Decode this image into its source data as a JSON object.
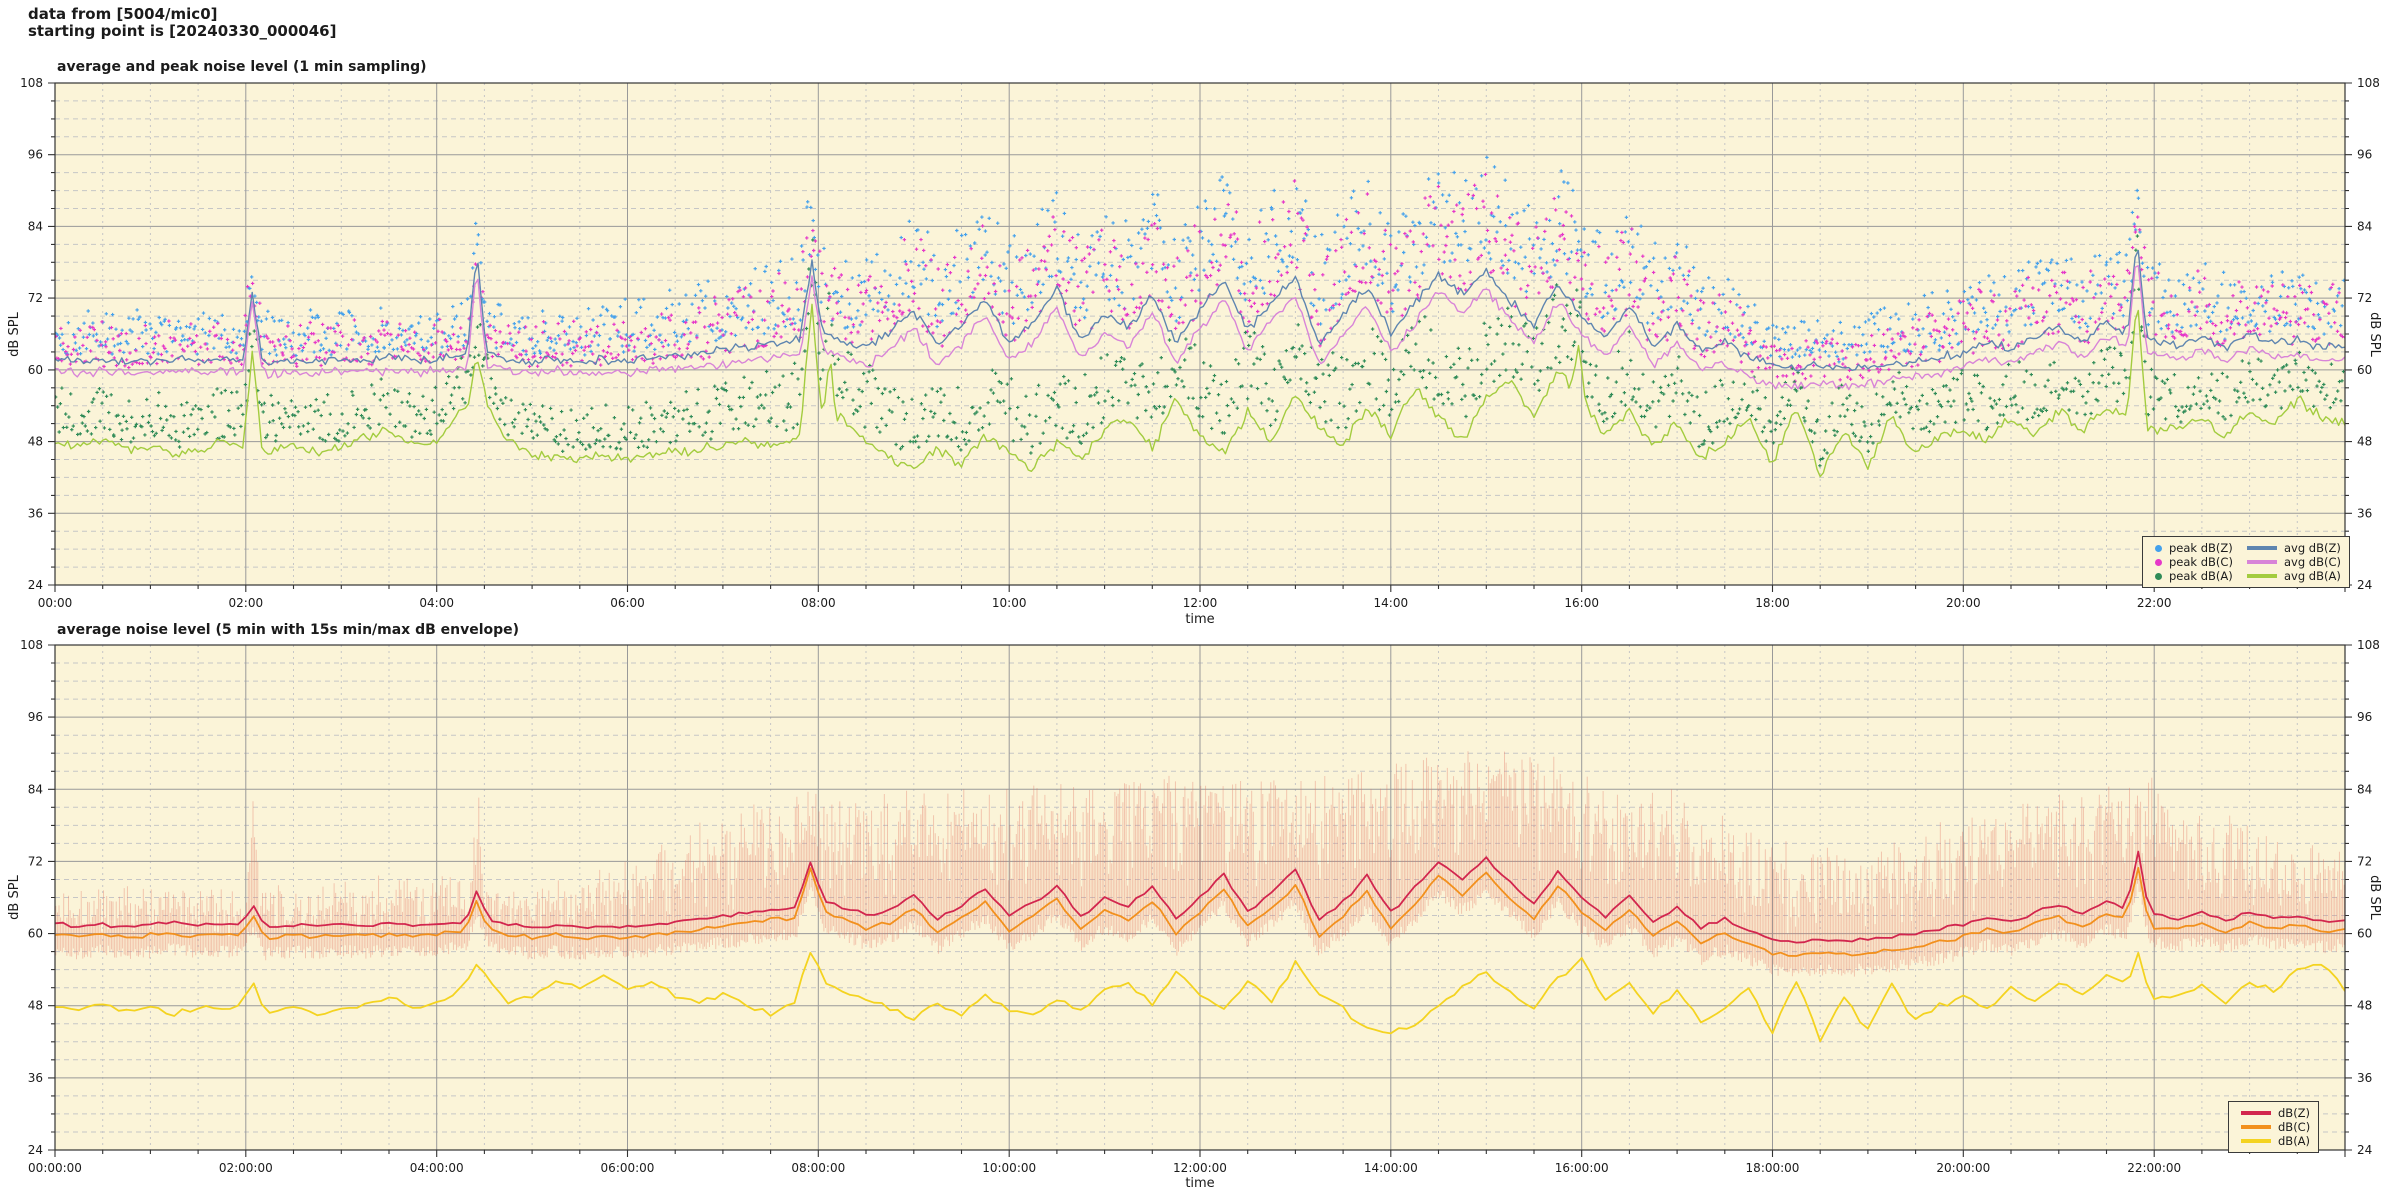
{
  "header": {
    "line1": "data from [5004/mic0]",
    "line2": "starting point is [20240330_000046]"
  },
  "chart_data": [
    {
      "type": "line+scatter",
      "title": "average and peak noise level (1 min sampling)",
      "xlabel": "time",
      "ylabel_left": "dB SPL",
      "ylabel_right": "dB SPL",
      "x_tick_labels": [
        "00:00",
        "02:00",
        "04:00",
        "06:00",
        "08:00",
        "10:00",
        "12:00",
        "14:00",
        "16:00",
        "18:00",
        "20:00",
        "22:00"
      ],
      "x_tick_hours": [
        0,
        2,
        4,
        6,
        8,
        10,
        12,
        14,
        16,
        18,
        20,
        22
      ],
      "x_range_hours": [
        0,
        24
      ],
      "x_minor_step_h": 0.5,
      "y_tick_values": [
        24,
        36,
        48,
        60,
        72,
        84,
        96,
        108
      ],
      "y_minor_step": 3,
      "ylim": [
        24,
        108
      ],
      "grid": true,
      "legend_position": "bottom-right-inside",
      "anchor_step_min": 15,
      "series": [
        {
          "key": "avg_dbz",
          "label": "avg dB(Z)",
          "color": "#5e85b0",
          "style": "line",
          "event_key": "z",
          "jitter": 1.0,
          "values": [
            62,
            61.4,
            61.8,
            61.3,
            61.6,
            62.2,
            61.5,
            61.8,
            61.6,
            61.4,
            61.7,
            61.3,
            61.9,
            61.5,
            62,
            61.6,
            61.8,
            62.5,
            63,
            61.8,
            61.5,
            61.9,
            61.4,
            61.7,
            61.5,
            62,
            62.3,
            62.8,
            63.5,
            64,
            64.5,
            65,
            66,
            65,
            63.5,
            66.5,
            70,
            64,
            67.5,
            72,
            64.5,
            68,
            73.5,
            65,
            69.5,
            67,
            72.5,
            64.5,
            70,
            75,
            66.5,
            71.5,
            75.5,
            64,
            69,
            74,
            66,
            71,
            76,
            72.5,
            76.5,
            71.5,
            67.5,
            74.5,
            69,
            65.5,
            70.5,
            64,
            67.5,
            63,
            64.5,
            62,
            60.5,
            60.2,
            60.6,
            60.3,
            60.6,
            61,
            61.4,
            62,
            63,
            64.5,
            63.5,
            65.5,
            67,
            64.5,
            68,
            66,
            65,
            64,
            65.5,
            63.5,
            66,
            64.5,
            65,
            63.8,
            64.2
          ]
        },
        {
          "key": "avg_dbc",
          "label": "avg dB(C)",
          "color": "#d884d8",
          "style": "line",
          "event_key": "c",
          "jitter": 1.0,
          "values": [
            60,
            59.4,
            59.8,
            59.3,
            59.6,
            60.2,
            59.5,
            59.8,
            59.6,
            59.4,
            59.7,
            59.3,
            59.9,
            59.5,
            60,
            59.6,
            59.8,
            60.3,
            60.8,
            59.8,
            59.5,
            59.9,
            59.4,
            59.7,
            59.5,
            59.9,
            60.1,
            60.4,
            61,
            61.5,
            62,
            62.5,
            63.5,
            62.3,
            60.8,
            63.3,
            67,
            60.8,
            64.3,
            69,
            61.3,
            64.8,
            70.5,
            61.8,
            66.3,
            63.8,
            69.5,
            61.3,
            66.8,
            72,
            63.3,
            68.3,
            72.5,
            60.8,
            65.8,
            71,
            62.8,
            67.8,
            73,
            69.5,
            73.5,
            68.3,
            64.3,
            71.5,
            65.8,
            62.3,
            67.3,
            60.8,
            64.3,
            59.8,
            61.3,
            58.8,
            57.5,
            57.2,
            57.6,
            57.3,
            57.6,
            58.2,
            58.6,
            59.4,
            60.6,
            62.1,
            61.1,
            63.1,
            64.6,
            62.1,
            65.6,
            63.6,
            62.6,
            61.8,
            63.3,
            61.3,
            63.8,
            62.3,
            62.8,
            61.6,
            62
          ]
        },
        {
          "key": "avg_dba",
          "label": "avg dB(A)",
          "color": "#a3cc3f",
          "style": "line",
          "event_key": "a",
          "jitter": 1.2,
          "values": [
            48,
            47.2,
            48.5,
            46.8,
            47.5,
            45.8,
            46.5,
            47.8,
            47,
            46.5,
            47.5,
            46,
            47,
            48.5,
            50,
            47.5,
            48,
            53,
            55,
            48,
            46,
            45.5,
            45,
            45.8,
            45.2,
            45.6,
            46.2,
            46.5,
            47.5,
            48,
            47.2,
            48.2,
            50,
            52,
            48,
            45,
            43.5,
            47,
            44,
            49,
            46,
            43.5,
            48,
            45,
            50,
            52,
            47,
            55,
            49,
            46,
            53,
            48,
            56,
            50,
            47,
            54,
            49,
            57,
            52,
            48,
            55,
            58,
            52,
            60,
            55,
            49,
            53,
            47,
            51,
            45,
            48,
            52,
            44,
            54,
            42,
            50,
            44,
            52,
            46,
            49,
            50,
            48,
            52,
            49,
            53,
            50,
            54,
            52,
            50,
            50,
            52,
            49,
            53,
            51,
            55,
            52,
            51
          ]
        }
      ],
      "scatter": [
        {
          "key": "peak_dbz",
          "label": "peak dB(Z)",
          "color": "#44a1ec",
          "base": "avg_dbz",
          "event_key": "z",
          "offsets_hourly": [
            5.5,
            5.5,
            5.5,
            5.5,
            5.5,
            5.5,
            6.5,
            8,
            10,
            11,
            11.5,
            12,
            12.5,
            12.5,
            13,
            13.5,
            12.5,
            11,
            5,
            6,
            8,
            9,
            9,
            8,
            8
          ]
        },
        {
          "key": "peak_dbc",
          "label": "peak dB(C)",
          "color": "#e637c8",
          "base": "avg_dbc",
          "event_key": "c",
          "offsets_hourly": [
            5.5,
            5.5,
            5.5,
            5.5,
            5.5,
            5.5,
            6.5,
            8,
            10,
            11,
            11.5,
            12,
            12.5,
            12.5,
            13,
            13.5,
            12.5,
            11,
            5,
            6,
            8,
            9,
            9,
            8,
            8
          ]
        },
        {
          "key": "peak_dba",
          "label": "peak dB(A)",
          "color": "#2f8b57",
          "base": "avg_dba",
          "event_key": "a",
          "offsets_hourly": [
            6,
            6,
            6,
            6,
            6,
            6,
            6.5,
            7.5,
            8.5,
            9,
            9,
            9,
            9.5,
            9.5,
            10,
            10,
            9.5,
            8.5,
            6,
            6,
            6.5,
            7,
            7,
            6.5,
            6.5
          ]
        }
      ],
      "events": [
        {
          "t": 2.07,
          "z": 73,
          "c": 71,
          "a": 63,
          "w": 0.1
        },
        {
          "t": 4.42,
          "z": 80,
          "c": 77.5,
          "a": 62,
          "w": 0.1
        },
        {
          "t": 7.93,
          "z": 78,
          "c": 75.5,
          "a": 71,
          "w": 0.12
        },
        {
          "t": 8.12,
          "a": 64,
          "w": 0.07
        },
        {
          "t": 15.97,
          "a": 64,
          "w": 0.08
        },
        {
          "t": 21.82,
          "z": 82,
          "c": 80,
          "a": 73,
          "w": 0.1
        }
      ],
      "legend": {
        "dots": [
          {
            "label": "peak dB(Z)",
            "color": "#44a1ec"
          },
          {
            "label": "peak dB(C)",
            "color": "#e637c8"
          },
          {
            "label": "peak dB(A)",
            "color": "#2f8b57"
          }
        ],
        "lines": [
          {
            "label": "avg dB(Z)",
            "color": "#5e85b0"
          },
          {
            "label": "avg dB(C)",
            "color": "#d884d8"
          },
          {
            "label": "avg dB(A)",
            "color": "#a3cc3f"
          }
        ]
      }
    },
    {
      "type": "line+envelope",
      "title": "average noise level (5 min with 15s min/max dB envelope)",
      "xlabel": "time",
      "ylabel_left": "dB SPL",
      "ylabel_right": "dB SPL",
      "x_tick_labels": [
        "00:00:00",
        "02:00:00",
        "04:00:00",
        "06:00:00",
        "08:00:00",
        "10:00:00",
        "12:00:00",
        "14:00:00",
        "16:00:00",
        "18:00:00",
        "20:00:00",
        "22:00:00"
      ],
      "x_tick_hours": [
        0,
        2,
        4,
        6,
        8,
        10,
        12,
        14,
        16,
        18,
        20,
        22
      ],
      "x_range_hours": [
        0,
        24
      ],
      "x_minor_step_h": 0.5,
      "y_tick_values": [
        24,
        36,
        48,
        60,
        72,
        84,
        96,
        108
      ],
      "y_minor_step": 3,
      "ylim": [
        24,
        108
      ],
      "grid": true,
      "legend_position": "bottom-right-inside",
      "anchor_step_min": 15,
      "envelope": {
        "color": "rgba(226,118,102,0.42)",
        "max_hourly": [
          66,
          67,
          66,
          67,
          68,
          66,
          70,
          78,
          84,
          82,
          83,
          84,
          86,
          85,
          88,
          90,
          86,
          82,
          74,
          72,
          78,
          82,
          84,
          76,
          72
        ],
        "min_below_dbc": 2.5,
        "events": [
          {
            "t": 2.07,
            "v": 88.5
          },
          {
            "t": 4.42,
            "v": 89
          },
          {
            "t": 21.83,
            "v": 88
          }
        ]
      },
      "series": [
        {
          "key": "dba",
          "label": "dB(A)",
          "color": "#f4d320",
          "style": "line",
          "event_key": "a",
          "jitter": 0.7,
          "values": [
            48,
            47.6,
            48.2,
            47.4,
            47.8,
            46.8,
            47.2,
            47.9,
            47.5,
            47,
            47.8,
            46.6,
            47.3,
            48.4,
            49.6,
            47.8,
            48.2,
            51,
            53,
            48.5,
            49.5,
            52.5,
            51,
            53.5,
            50.5,
            52,
            49.5,
            48.5,
            50,
            48,
            46.5,
            49,
            52,
            50.5,
            49,
            47.5,
            46,
            48.5,
            46.5,
            50,
            47.5,
            46,
            49,
            47,
            50.5,
            51.5,
            48,
            54,
            49.5,
            47,
            52.5,
            48.5,
            55,
            50,
            47.5,
            44,
            43.5,
            45,
            48,
            51,
            53.5,
            50,
            47.5,
            52.5,
            55.5,
            49,
            52,
            47,
            50.5,
            45.5,
            47.5,
            51,
            43.5,
            52.5,
            42.5,
            49.5,
            44,
            51.5,
            45.5,
            48,
            49.5,
            47.5,
            51,
            48.5,
            52,
            49.5,
            53,
            51.5,
            49.5,
            49.5,
            51.5,
            48.5,
            52,
            50.5,
            54,
            55,
            50.5
          ]
        },
        {
          "key": "dbc",
          "label": "dB(C)",
          "color": "#f2901d",
          "style": "line",
          "event_key": "c",
          "jitter": 0.5,
          "values": [
            59.8,
            59.5,
            59.9,
            59.3,
            59.7,
            60.1,
            59.5,
            59.9,
            59.6,
            59.3,
            59.8,
            59.4,
            59.9,
            59.5,
            60,
            59.6,
            59.8,
            60.4,
            60.9,
            59.7,
            59.4,
            59.8,
            59.3,
            59.6,
            59.4,
            59.9,
            60.2,
            60.5,
            61.2,
            61.7,
            62.2,
            62.7,
            63.7,
            62.7,
            61,
            61.8,
            64.3,
            60.3,
            62.6,
            65.3,
            60.6,
            62.8,
            65.8,
            60.8,
            63.8,
            62,
            65.5,
            60,
            63.5,
            67.5,
            61,
            64.5,
            68,
            59.5,
            63,
            67,
            61,
            65,
            69.5,
            66.5,
            70,
            66,
            62.5,
            68,
            63.5,
            60.5,
            64,
            59.5,
            62,
            58.5,
            60,
            58.2,
            56.8,
            56.4,
            56.8,
            56.5,
            56.8,
            57.3,
            57.8,
            58.6,
            59.5,
            60.8,
            60,
            61.5,
            62.8,
            61,
            63.5,
            62,
            61.2,
            60.6,
            61.6,
            60.3,
            62,
            60.9,
            61.3,
            60.5,
            60.8
          ]
        },
        {
          "key": "dbz",
          "label": "dB(Z)",
          "color": "#d2264e",
          "style": "line",
          "event_key": "z",
          "jitter": 0.5,
          "values": [
            61.5,
            61.2,
            61.6,
            61,
            61.4,
            61.8,
            61.2,
            61.6,
            61.3,
            61,
            61.5,
            61.1,
            61.6,
            61.2,
            61.7,
            61.3,
            61.5,
            62,
            62.5,
            61.4,
            61.1,
            61.5,
            61,
            61.3,
            61.1,
            61.6,
            61.9,
            62.3,
            63,
            63.5,
            64,
            64.5,
            65.5,
            64.5,
            63,
            64,
            66.5,
            62.5,
            64.8,
            67.5,
            62.8,
            65,
            68,
            63,
            66,
            64.5,
            68,
            62.5,
            66,
            70,
            63.5,
            67,
            70.5,
            62,
            65.5,
            69.5,
            63.5,
            67.5,
            72,
            69,
            72.5,
            68.5,
            65,
            70.5,
            66,
            63,
            66.5,
            62,
            64.5,
            61,
            62.5,
            60.5,
            59,
            58.6,
            59,
            58.7,
            59,
            59.5,
            60,
            60.8,
            61.5,
            62.8,
            62,
            63.5,
            64.8,
            63,
            65.5,
            64,
            63.2,
            62.4,
            63.4,
            62,
            63.8,
            62.6,
            63,
            62.2,
            62
          ]
        }
      ],
      "events": [
        {
          "t": 2.07,
          "z": 65,
          "c": 63.5,
          "a": 52.5,
          "w": 0.12
        },
        {
          "t": 4.42,
          "z": 67.2,
          "c": 65.5,
          "a": 55,
          "w": 0.12
        },
        {
          "t": 7.92,
          "z": 72,
          "c": 71,
          "a": 57,
          "w": 0.15
        },
        {
          "t": 21.83,
          "z": 74,
          "c": 71,
          "a": 57,
          "w": 0.12
        }
      ],
      "legend": {
        "lines": [
          {
            "label": "dB(Z)",
            "color": "#d2264e"
          },
          {
            "label": "dB(C)",
            "color": "#f2901d"
          },
          {
            "label": "dB(A)",
            "color": "#f4d320"
          }
        ]
      }
    }
  ],
  "style_colors": {
    "plot_background": "#fbf4d8",
    "major_grid": "#999999",
    "minor_grid": "#c6c6c6",
    "axis_frame": "#333333"
  }
}
